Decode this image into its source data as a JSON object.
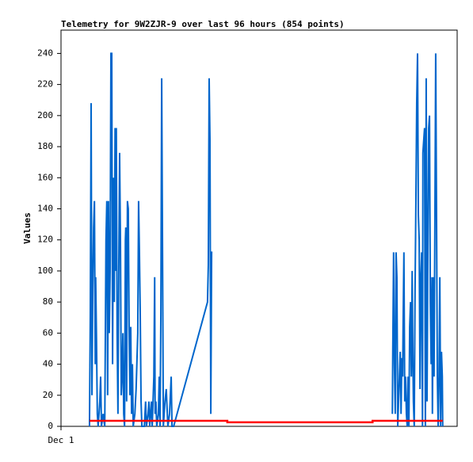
{
  "chart_data": {
    "type": "line",
    "title": "Telemetry for 9W2ZJR-9 over last 96 hours (854 points)",
    "y_label": "Values",
    "xlim": [
      0,
      96
    ],
    "xticks": [
      {
        "value": 0,
        "label": "Dec 1"
      }
    ],
    "ylim": [
      0,
      255
    ],
    "yticks": [
      0,
      20,
      40,
      60,
      80,
      100,
      120,
      140,
      160,
      180,
      200,
      220,
      240
    ],
    "grid": false,
    "series": [
      {
        "color": "#0066cc",
        "x": [
          6.9,
          7.1,
          7.3,
          7.5,
          7.7,
          7.9,
          8.1,
          8.3,
          8.4,
          8.6,
          8.8,
          9.0,
          9.4,
          9.6,
          9.8,
          10.2,
          10.6,
          10.9,
          11.1,
          11.3,
          11.5,
          11.7,
          11.9,
          12.1,
          12.3,
          12.5,
          12.7,
          12.9,
          13.1,
          13.2,
          13.4,
          13.6,
          13.8,
          14.0,
          14.2,
          14.4,
          14.6,
          14.8,
          15.0,
          15.2,
          15.4,
          15.6,
          15.7,
          15.9,
          16.1,
          16.3,
          16.5,
          16.7,
          16.9,
          17.1,
          17.3,
          17.5,
          17.9,
          18.2,
          18.6,
          18.8,
          19.0,
          19.2,
          19.4,
          19.6,
          20.2,
          20.5,
          20.7,
          21.1,
          21.3,
          21.5,
          21.7,
          21.9,
          22.1,
          22.5,
          22.7,
          22.8,
          23.0,
          23.2,
          23.6,
          23.8,
          24.0,
          24.2,
          24.4,
          24.6,
          24.8,
          25.2,
          25.5,
          25.9,
          26.3,
          26.7,
          26.9,
          27.3,
          35.5,
          35.7,
          35.9,
          36.1,
          36.3,
          36.5,
          36.7,
          50.0,
          80.3,
          80.4,
          80.6,
          80.8,
          81.0,
          81.2,
          81.4,
          81.6,
          81.8,
          82.0,
          82.2,
          82.4,
          82.6,
          82.8,
          82.9,
          83.1,
          83.3,
          83.5,
          83.7,
          83.9,
          84.1,
          84.3,
          84.5,
          84.7,
          84.9,
          85.1,
          85.2,
          85.4,
          85.6,
          85.8,
          86.0,
          86.2,
          86.4,
          86.6,
          86.8,
          87.0,
          87.2,
          87.4,
          87.6,
          87.7,
          87.9,
          88.1,
          88.3,
          88.5,
          88.7,
          88.9,
          89.1,
          89.3,
          89.5,
          89.7,
          89.9,
          90.0,
          90.2,
          90.4,
          90.6,
          90.8,
          91.0,
          91.2,
          91.4,
          91.6,
          91.8,
          92.0,
          92.2,
          92.4,
          92.5
        ],
        "values": [
          0,
          72,
          208,
          20,
          88,
          128,
          145,
          40,
          96,
          56,
          8,
          0,
          16,
          32,
          0,
          8,
          0,
          120,
          145,
          20,
          145,
          60,
          100,
          240,
          240,
          40,
          160,
          80,
          192,
          100,
          192,
          60,
          8,
          100,
          176,
          120,
          20,
          32,
          60,
          8,
          0,
          120,
          128,
          16,
          145,
          140,
          64,
          20,
          64,
          8,
          40,
          0,
          8,
          24,
          60,
          145,
          112,
          72,
          16,
          0,
          0,
          16,
          0,
          8,
          16,
          0,
          8,
          16,
          0,
          32,
          96,
          8,
          16,
          0,
          8,
          32,
          0,
          72,
          224,
          112,
          0,
          16,
          24,
          0,
          8,
          32,
          0,
          0,
          80,
          104,
          224,
          184,
          8,
          112,
          112,
          null,
          8,
          48,
          112,
          40,
          8,
          112,
          96,
          0,
          16,
          32,
          48,
          8,
          44,
          32,
          64,
          112,
          16,
          32,
          8,
          0,
          32,
          0,
          64,
          80,
          32,
          100,
          64,
          16,
          0,
          88,
          144,
          208,
          240,
          136,
          120,
          24,
          96,
          112,
          0,
          176,
          184,
          192,
          0,
          224,
          16,
          112,
          192,
          200,
          80,
          40,
          96,
          8,
          96,
          32,
          128,
          240,
          136,
          32,
          0,
          32,
          96,
          0,
          48,
          32,
          0
        ]
      },
      {
        "color": "#ff0000",
        "x": [
          6.9,
          40.3,
          40.3,
          75.5,
          75.5,
          92.5
        ],
        "values": [
          3.6,
          3.6,
          2.6,
          2.6,
          3.6,
          3.6
        ]
      }
    ]
  }
}
